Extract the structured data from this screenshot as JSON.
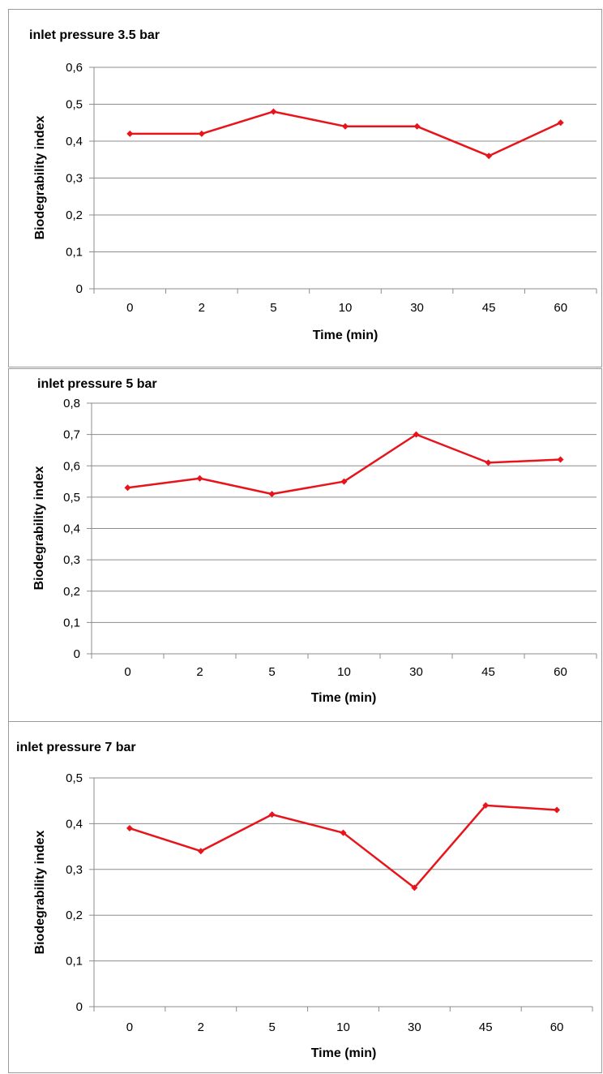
{
  "chart_data": [
    {
      "type": "line",
      "title": "inlet pressure 3.5 bar",
      "xlabel": "Time (min)",
      "ylabel": "Biodegrability index",
      "categories": [
        "0",
        "2",
        "5",
        "10",
        "30",
        "45",
        "60"
      ],
      "yticks": [
        "0",
        "0,1",
        "0,2",
        "0,3",
        "0,4",
        "0,5",
        "0,6"
      ],
      "ylim": [
        0,
        0.6
      ],
      "ystep": 0.1,
      "series": [
        {
          "values": [
            0.42,
            0.42,
            0.48,
            0.44,
            0.44,
            0.36,
            0.45
          ],
          "color": "#e8141c",
          "marker": "diamond"
        }
      ],
      "grid": true,
      "legend": "none"
    },
    {
      "type": "line",
      "title": "inlet pressure 5 bar",
      "xlabel": "Time (min)",
      "ylabel": "Biodegrability index",
      "categories": [
        "0",
        "2",
        "5",
        "10",
        "30",
        "45",
        "60"
      ],
      "yticks": [
        "0",
        "0,1",
        "0,2",
        "0,3",
        "0,4",
        "0,5",
        "0,6",
        "0,7",
        "0,8"
      ],
      "ylim": [
        0,
        0.8
      ],
      "ystep": 0.1,
      "series": [
        {
          "values": [
            0.53,
            0.56,
            0.51,
            0.55,
            0.7,
            0.61,
            0.62
          ],
          "color": "#e8141c",
          "marker": "diamond"
        }
      ],
      "grid": true,
      "legend": "none"
    },
    {
      "type": "line",
      "title": "inlet pressure 7 bar",
      "xlabel": "Time (min)",
      "ylabel": "Biodegrability index",
      "categories": [
        "0",
        "2",
        "5",
        "10",
        "30",
        "45",
        "60"
      ],
      "yticks": [
        "0",
        "0,1",
        "0,2",
        "0,3",
        "0,4",
        "0,5"
      ],
      "ylim": [
        0,
        0.5
      ],
      "ystep": 0.1,
      "series": [
        {
          "values": [
            0.39,
            0.34,
            0.42,
            0.38,
            0.26,
            0.44,
            0.43
          ],
          "color": "#e8141c",
          "marker": "diamond"
        }
      ],
      "grid": true,
      "legend": "none"
    }
  ]
}
